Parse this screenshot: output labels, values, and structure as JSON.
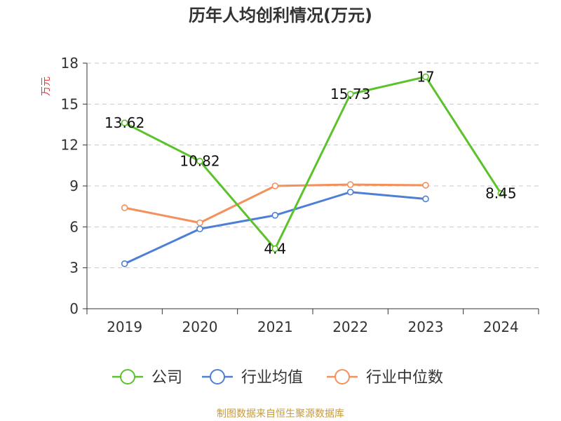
{
  "chart_data": {
    "type": "line",
    "title": "历年人均创利情况(万元)",
    "ylabel": "万元",
    "categories": [
      "2019",
      "2020",
      "2021",
      "2022",
      "2023",
      "2024"
    ],
    "yticks": [
      "0",
      "3",
      "6",
      "9",
      "12",
      "15",
      "18"
    ],
    "ylim": [
      0,
      18
    ],
    "grid": true,
    "legend_position": "bottom",
    "series": [
      {
        "name": "公司",
        "color": "#5cc22b",
        "values": [
          13.62,
          10.82,
          4.4,
          15.73,
          17,
          8.45
        ],
        "labels": [
          "13.62",
          "10.82",
          "4.4",
          "15.73",
          "17",
          "8.45"
        ]
      },
      {
        "name": "行业均值",
        "color": "#4e7fd6",
        "values": [
          3.3,
          5.85,
          6.85,
          8.55,
          8.05,
          null
        ]
      },
      {
        "name": "行业中位数",
        "color": "#f3905c",
        "values": [
          7.4,
          6.3,
          9.0,
          9.1,
          9.05,
          null
        ]
      }
    ]
  },
  "source": "制图数据来自恒生聚源数据库",
  "colors": {
    "axis": "#333333",
    "grid": "#c8c8c8",
    "ylabel": "#e03b3b",
    "source": "#c89a3a"
  }
}
